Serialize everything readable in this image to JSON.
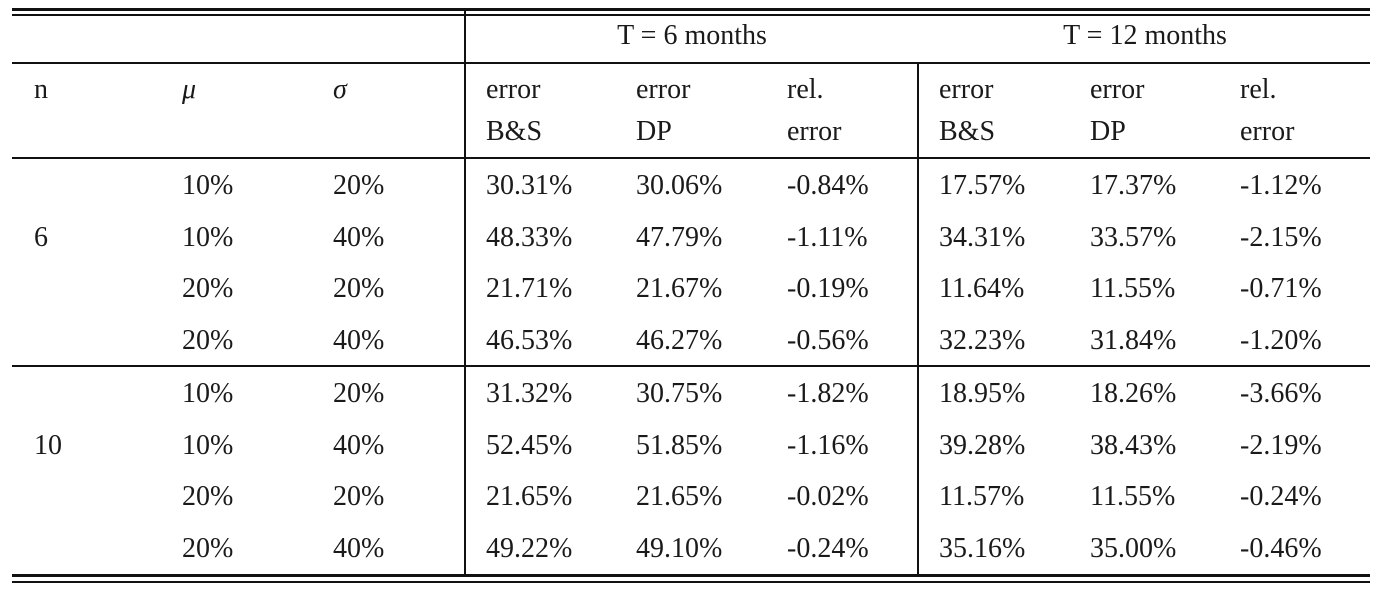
{
  "table": {
    "group_headers": [
      "T = 6 months",
      "T = 12 months"
    ],
    "col_headers": {
      "n": "n",
      "mu": "μ",
      "sigma": "σ",
      "g1": [
        [
          "error",
          "B&S"
        ],
        [
          "error",
          "DP"
        ],
        [
          "rel.",
          "error"
        ]
      ],
      "g2": [
        [
          "error",
          "B&S"
        ],
        [
          "error",
          "DP"
        ],
        [
          "rel.",
          "error"
        ]
      ]
    },
    "blocks": [
      {
        "n": "6",
        "rows": [
          [
            "10%",
            "20%",
            "30.31%",
            "30.06%",
            "-0.84%",
            "17.57%",
            "17.37%",
            "-1.12%"
          ],
          [
            "10%",
            "40%",
            "48.33%",
            "47.79%",
            "-1.11%",
            "34.31%",
            "33.57%",
            "-2.15%"
          ],
          [
            "20%",
            "20%",
            "21.71%",
            "21.67%",
            "-0.19%",
            "11.64%",
            "11.55%",
            "-0.71%"
          ],
          [
            "20%",
            "40%",
            "46.53%",
            "46.27%",
            "-0.56%",
            "32.23%",
            "31.84%",
            "-1.20%"
          ]
        ]
      },
      {
        "n": "10",
        "rows": [
          [
            "10%",
            "20%",
            "31.32%",
            "30.75%",
            "-1.82%",
            "18.95%",
            "18.26%",
            "-3.66%"
          ],
          [
            "10%",
            "40%",
            "52.45%",
            "51.85%",
            "-1.16%",
            "39.28%",
            "38.43%",
            "-2.19%"
          ],
          [
            "20%",
            "20%",
            "21.65%",
            "21.65%",
            "-0.02%",
            "11.57%",
            "11.55%",
            "-0.24%"
          ],
          [
            "20%",
            "40%",
            "49.22%",
            "49.10%",
            "-0.24%",
            "35.16%",
            "35.00%",
            "-0.46%"
          ]
        ]
      }
    ]
  }
}
